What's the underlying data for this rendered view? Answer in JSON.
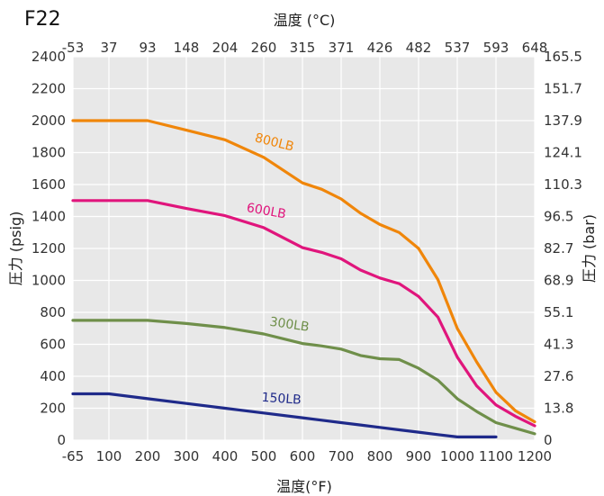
{
  "page": {
    "title": "F22"
  },
  "chart_data": {
    "type": "line",
    "title": "F22",
    "xlabel": "温度(°F)",
    "x2label": "温度 (°C)",
    "ylabel": "圧力 (psig)",
    "y2label": "圧力 (bar)",
    "xlim": [
      -65,
      1200
    ],
    "ylim": [
      0,
      2400
    ],
    "grid": true,
    "x_ticks": [
      -65,
      100,
      200,
      300,
      400,
      500,
      600,
      700,
      800,
      900,
      1000,
      1100,
      1200
    ],
    "x_tick_labels": [
      "-65",
      "100",
      "200",
      "300",
      "400",
      "500",
      "600",
      "700",
      "800",
      "900",
      "1000",
      "1100",
      "1200"
    ],
    "x2_tick_labels": [
      "-53",
      "37",
      "93",
      "148",
      "204",
      "260",
      "315",
      "371",
      "426",
      "482",
      "537",
      "593",
      "648"
    ],
    "y_ticks": [
      0,
      200,
      400,
      600,
      800,
      1000,
      1200,
      1400,
      1600,
      1800,
      2000,
      2200,
      2400
    ],
    "y_tick_labels": [
      "0",
      "200",
      "400",
      "600",
      "800",
      "1000",
      "1200",
      "1400",
      "1600",
      "1800",
      "2000",
      "2200",
      "2400"
    ],
    "y2_tick_labels": [
      "0",
      "13.8",
      "27.6",
      "41.3",
      "55.1",
      "68.9",
      "82.7",
      "96.5",
      "110.3",
      "124.1",
      "137.9",
      "151.7",
      "165.5"
    ],
    "series": [
      {
        "name": "800LB",
        "color": "#f0860a",
        "x": [
          -65,
          100,
          200,
          300,
          400,
          500,
          600,
          650,
          700,
          750,
          800,
          850,
          900,
          950,
          1000,
          1050,
          1100,
          1150,
          1200
        ],
        "y": [
          2000,
          2000,
          2000,
          1940,
          1880,
          1770,
          1610,
          1570,
          1510,
          1420,
          1350,
          1300,
          1200,
          1005,
          700,
          490,
          300,
          185,
          115
        ]
      },
      {
        "name": "600LB",
        "color": "#e0157c",
        "x": [
          -65,
          100,
          200,
          300,
          400,
          500,
          600,
          650,
          700,
          750,
          800,
          850,
          900,
          950,
          1000,
          1050,
          1100,
          1150,
          1200
        ],
        "y": [
          1500,
          1500,
          1500,
          1450,
          1405,
          1330,
          1205,
          1175,
          1135,
          1065,
          1015,
          980,
          900,
          770,
          520,
          340,
          220,
          150,
          90
        ]
      },
      {
        "name": "300LB",
        "color": "#6f8f4a",
        "x": [
          -65,
          100,
          200,
          300,
          400,
          500,
          600,
          650,
          700,
          750,
          800,
          850,
          900,
          950,
          1000,
          1050,
          1100,
          1150,
          1200
        ],
        "y": [
          750,
          750,
          750,
          730,
          705,
          665,
          605,
          590,
          570,
          530,
          510,
          505,
          450,
          375,
          260,
          180,
          110,
          75,
          40
        ]
      },
      {
        "name": "150LB",
        "color": "#1f2a8a",
        "x": [
          -65,
          100,
          200,
          300,
          400,
          500,
          600,
          650,
          700,
          750,
          800,
          850,
          900,
          950,
          1000,
          1050,
          1100
        ],
        "y": [
          290,
          290,
          260,
          230,
          200,
          170,
          140,
          125,
          110,
          95,
          80,
          65,
          50,
          35,
          20,
          20,
          20
        ]
      }
    ]
  }
}
